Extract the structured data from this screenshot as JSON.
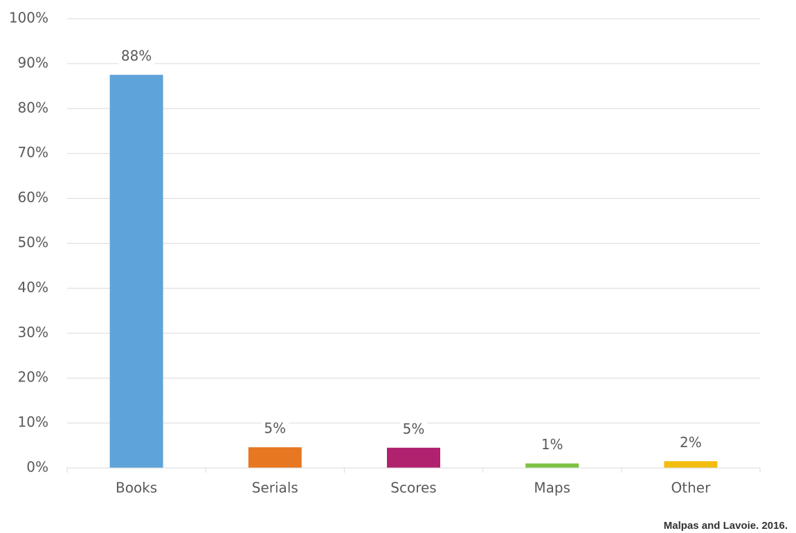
{
  "chart_data": {
    "type": "bar",
    "categories": [
      "Books",
      "Serials",
      "Scores",
      "Maps",
      "Other"
    ],
    "values": [
      87.5,
      4.6,
      4.5,
      1,
      1.5
    ],
    "value_labels": [
      "88%",
      "5%",
      "5%",
      "1%",
      "2%"
    ],
    "colors": [
      "#5ea3d9",
      "#e87722",
      "#b0226e",
      "#7dc242",
      "#f2bd0f"
    ],
    "ylim": [
      0,
      100
    ],
    "yticks": [
      {
        "value": 0,
        "label": "0%"
      },
      {
        "value": 10,
        "label": "10%"
      },
      {
        "value": 20,
        "label": "20%"
      },
      {
        "value": 30,
        "label": "30%"
      },
      {
        "value": 40,
        "label": "40%"
      },
      {
        "value": 50,
        "label": "50%"
      },
      {
        "value": 60,
        "label": "60%"
      },
      {
        "value": 70,
        "label": "70%"
      },
      {
        "value": 80,
        "label": "80%"
      },
      {
        "value": 90,
        "label": "90%"
      },
      {
        "value": 100,
        "label": "100%"
      }
    ],
    "grid": true,
    "source": "Malpas and Lavoie. 2016."
  }
}
